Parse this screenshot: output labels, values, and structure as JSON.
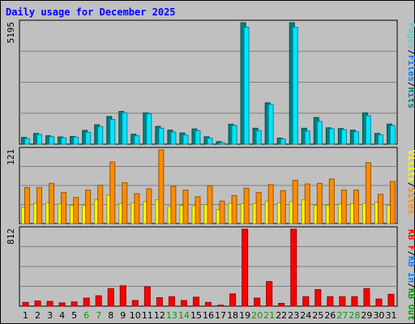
{
  "chart_data": {
    "title": "Daily usage for December 2025",
    "type": "bar",
    "grid": true,
    "categories": [
      "1",
      "2",
      "3",
      "4",
      "5",
      "6",
      "7",
      "8",
      "9",
      "10",
      "11",
      "12",
      "13",
      "14",
      "15",
      "16",
      "17",
      "18",
      "19",
      "20",
      "21",
      "22",
      "23",
      "24",
      "25",
      "26",
      "27",
      "28",
      "29",
      "30",
      "31"
    ],
    "weekend_days": [
      "6",
      "7",
      "13",
      "14",
      "20",
      "21",
      "27",
      "28"
    ],
    "colors": {
      "pages": "#66cccc",
      "files": "#00e5ff",
      "hits": "#008080",
      "visits": "#ffff00",
      "sites": "#ff8c00",
      "kbf": "#ff0000",
      "kbin": "#0080ff",
      "kbout": "#00a000",
      "weekday_label": "#000000",
      "weekend_label": "#00a000",
      "max_label": "#000000"
    },
    "panels": [
      {
        "id": "hits",
        "max_label": "5195",
        "ylim": [
          0,
          5195
        ],
        "legend": [
          "Pages",
          "/",
          "Files",
          "/",
          "Hits"
        ],
        "legend_colors": [
          "#66cccc",
          "#000000",
          "#0080ff",
          "#000000",
          "#008080"
        ],
        "series": [
          {
            "name": "Hits",
            "values": [
              290,
              460,
              360,
              310,
              330,
              590,
              830,
              1180,
              1400,
              430,
              1340,
              760,
              600,
              480,
              650,
              320,
              110,
              850,
              5195,
              680,
              1770,
              260,
              5195,
              680,
              1140,
              700,
              670,
              600,
              1340,
              460,
              860
            ]
          },
          {
            "name": "Files",
            "values": [
              240,
              410,
              320,
              270,
              300,
              510,
              750,
              1060,
              1340,
              360,
              1300,
              680,
              520,
              390,
              580,
              260,
              70,
              800,
              5000,
              580,
              1700,
              220,
              5000,
              560,
              970,
              660,
              620,
              530,
              1220,
              400,
              800
            ]
          }
        ]
      },
      {
        "id": "visits",
        "max_label": "121",
        "ylim": [
          0,
          121
        ],
        "legend": [
          "Visits",
          "/",
          "Sites"
        ],
        "legend_colors": [
          "#ffff00",
          "#000000",
          "#ff8c00"
        ],
        "series": [
          {
            "name": "Visits",
            "values": [
              27,
              33,
              34,
              32,
              30,
              30,
              39,
              47,
              33,
              34,
              36,
              39,
              28,
              30,
              29,
              31,
              23,
              33,
              33,
              33,
              37,
              34,
              36,
              39,
              30,
              30,
              32,
              33,
              33,
              35,
              30
            ]
          },
          {
            "name": "Sites",
            "values": [
              59,
              59,
              66,
              51,
              43,
              55,
              63,
              101,
              67,
              49,
              57,
              121,
              61,
              55,
              44,
              62,
              37,
              46,
              58,
              51,
              64,
              54,
              71,
              65,
              66,
              73,
              55,
              55,
              100,
              48,
              69
            ]
          }
        ]
      },
      {
        "id": "kbytes",
        "max_label": "812",
        "ylim": [
          0,
          812
        ],
        "legend": [
          "KB F",
          "/",
          "KB In",
          "/",
          "KB Out"
        ],
        "legend_colors": [
          "#ff0000",
          "#000000",
          "#0080ff",
          "#000000",
          "#00a000"
        ],
        "series": [
          {
            "name": "KB F",
            "values": [
              40,
              55,
              50,
              35,
              45,
              85,
              110,
              185,
              215,
              60,
              205,
              90,
              100,
              60,
              95,
              40,
              10,
              130,
              812,
              85,
              260,
              30,
              812,
              100,
              175,
              100,
              100,
              100,
              185,
              75,
              125
            ]
          }
        ]
      }
    ]
  }
}
